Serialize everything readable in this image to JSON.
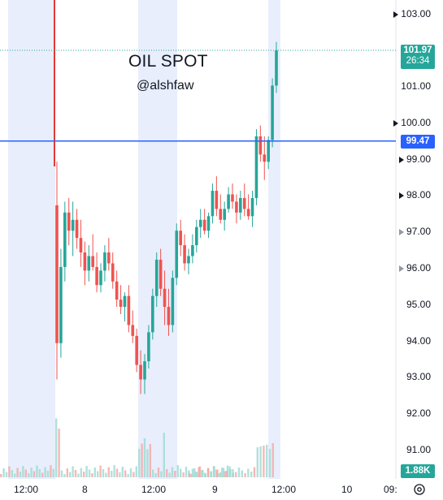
{
  "chart": {
    "title": "OIL SPOT",
    "watermark": "@alshfaw",
    "y_ticks": [
      "103.00",
      "102.00",
      "101.00",
      "100.00",
      "99.00",
      "98.00",
      "97.00",
      "96.00",
      "95.00",
      "94.00",
      "93.00",
      "92.00",
      "91.00"
    ],
    "x_ticks": [
      "12:00",
      "8",
      "12:00",
      "9",
      "12:00",
      "10",
      "09:"
    ],
    "last_price": "101.97",
    "countdown": "26:34",
    "hline_price": "99.47",
    "volume_label": "1.88K"
  },
  "colors": {
    "up": "#26a69a",
    "down": "#ef5350",
    "session_shade": "#e8eefc",
    "hline": "#2962ff",
    "price_badge": "#26a69a",
    "hline_badge": "#2962ff",
    "red_vertical": "#e53935"
  },
  "chart_data": {
    "type": "candlestick",
    "ylim": [
      90.5,
      103.2
    ],
    "hline": 99.47,
    "last": 101.97,
    "candles": [
      [
        97.7,
        98.9,
        92.9,
        93.9
      ],
      [
        93.9,
        96.5,
        93.5,
        96.0
      ],
      [
        96.0,
        97.8,
        95.6,
        97.5
      ],
      [
        97.5,
        97.9,
        96.6,
        97.0
      ],
      [
        97.0,
        97.8,
        96.3,
        97.3
      ],
      [
        97.3,
        97.6,
        96.5,
        96.8
      ],
      [
        96.8,
        97.3,
        96.0,
        96.4
      ],
      [
        96.4,
        96.7,
        95.5,
        95.9
      ],
      [
        95.9,
        96.6,
        95.6,
        96.3
      ],
      [
        96.3,
        96.9,
        95.9,
        96.0
      ],
      [
        96.0,
        96.4,
        95.3,
        95.5
      ],
      [
        95.5,
        96.1,
        95.3,
        95.9
      ],
      [
        95.9,
        96.6,
        95.6,
        96.4
      ],
      [
        96.4,
        96.8,
        95.9,
        96.1
      ],
      [
        96.1,
        96.4,
        95.4,
        95.6
      ],
      [
        95.6,
        95.9,
        94.9,
        95.1
      ],
      [
        95.1,
        95.5,
        94.7,
        94.9
      ],
      [
        94.9,
        95.3,
        94.5,
        95.2
      ],
      [
        95.2,
        95.5,
        94.2,
        94.4
      ],
      [
        94.4,
        94.8,
        93.9,
        94.1
      ],
      [
        94.1,
        94.3,
        93.1,
        93.3
      ],
      [
        93.3,
        93.7,
        92.5,
        92.9
      ],
      [
        92.9,
        93.6,
        92.5,
        93.4
      ],
      [
        93.4,
        94.4,
        93.2,
        94.2
      ],
      [
        94.2,
        95.4,
        94.0,
        95.2
      ],
      [
        95.2,
        96.4,
        94.9,
        96.2
      ],
      [
        96.2,
        96.5,
        95.2,
        95.4
      ],
      [
        95.4,
        95.9,
        94.4,
        94.9
      ],
      [
        94.9,
        95.4,
        94.1,
        94.4
      ],
      [
        94.4,
        95.9,
        94.2,
        95.7
      ],
      [
        95.7,
        97.2,
        95.5,
        97.0
      ],
      [
        97.0,
        97.3,
        96.3,
        96.6
      ],
      [
        96.6,
        96.9,
        95.9,
        96.1
      ],
      [
        96.1,
        96.5,
        95.8,
        96.3
      ],
      [
        96.3,
        96.9,
        96.1,
        96.6
      ],
      [
        96.6,
        97.3,
        96.4,
        97.1
      ],
      [
        97.1,
        97.6,
        96.8,
        97.3
      ],
      [
        97.3,
        97.6,
        96.9,
        97.0
      ],
      [
        97.0,
        97.5,
        96.8,
        97.4
      ],
      [
        97.4,
        98.3,
        97.2,
        98.1
      ],
      [
        98.1,
        98.5,
        97.4,
        97.6
      ],
      [
        97.6,
        98.0,
        97.2,
        97.3
      ],
      [
        97.3,
        97.8,
        97.0,
        97.6
      ],
      [
        97.6,
        98.2,
        97.5,
        98.0
      ],
      [
        98.0,
        98.3,
        97.6,
        97.8
      ],
      [
        97.8,
        98.0,
        97.2,
        97.5
      ],
      [
        97.5,
        98.1,
        97.3,
        97.9
      ],
      [
        97.9,
        98.3,
        97.4,
        97.6
      ],
      [
        97.6,
        98.0,
        97.3,
        97.4
      ],
      [
        97.4,
        98.1,
        97.1,
        97.9
      ],
      [
        97.9,
        99.8,
        97.7,
        99.6
      ],
      [
        99.6,
        99.9,
        98.9,
        99.1
      ],
      [
        99.1,
        99.6,
        98.4,
        98.9
      ],
      [
        98.9,
        99.6,
        98.7,
        99.5
      ],
      [
        99.5,
        101.2,
        99.3,
        101.0
      ],
      [
        101.0,
        102.2,
        100.8,
        101.97
      ]
    ]
  }
}
